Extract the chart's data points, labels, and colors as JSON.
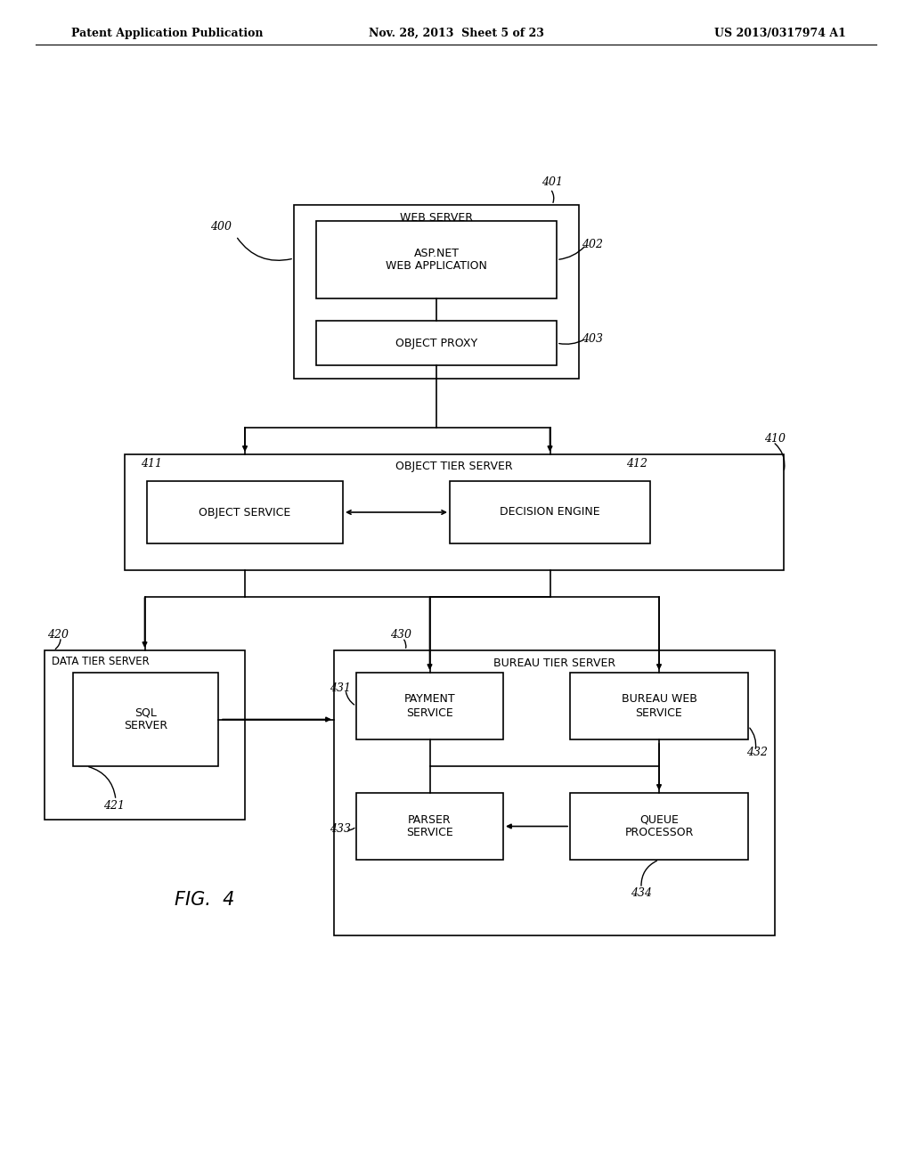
{
  "background_color": "#ffffff",
  "header": {
    "left": "Patent Application Publication",
    "center": "Nov. 28, 2013  Sheet 5 of 23",
    "right": "US 2013/0317974 A1"
  },
  "figure_label": "FIG.  4",
  "lw": 1.2
}
